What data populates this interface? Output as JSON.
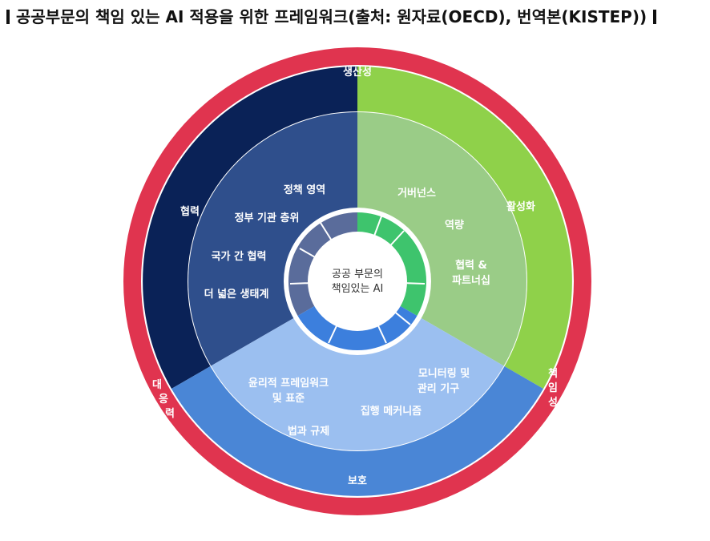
{
  "heading": {
    "text": "공공부문의 책임 있는 AI 적용을 위한 프레임워크(출처: 원자료(OECD), 번역본(KISTEP))"
  },
  "diagram": {
    "center": [
      "공공 부문의",
      "책임있는 AI"
    ],
    "outer_ring": {
      "top": "생산성",
      "right": [
        "책",
        "임",
        "성"
      ],
      "left": [
        "대",
        "응",
        "력"
      ],
      "bottom": "보호"
    },
    "middle_ring": {
      "collaboration": "협력",
      "enablement": "활성화"
    },
    "sections": {
      "collaboration": [
        "정책 영역",
        "정부 기관 층위",
        "국가 간 협력",
        "더 넓은 생태계"
      ],
      "enablement": [
        "거버넌스",
        "역량",
        [
          "협력 &",
          "파트너십"
        ]
      ],
      "protection": [
        [
          "윤리적 프레임워크",
          "및 표준"
        ],
        "법과 규제",
        "집행 메커니즘",
        [
          "모니터링 및",
          "관리 기구"
        ]
      ]
    },
    "colors": {
      "outer": "#e0344f",
      "collab_dark": "#0a2257",
      "collab_inner": "#2f4f8c",
      "enable_bright": "#8fd14a",
      "enable_inner": "#9acc87",
      "protect_mid": "#4a86d6",
      "protect_inner": "#9bbff0"
    }
  }
}
